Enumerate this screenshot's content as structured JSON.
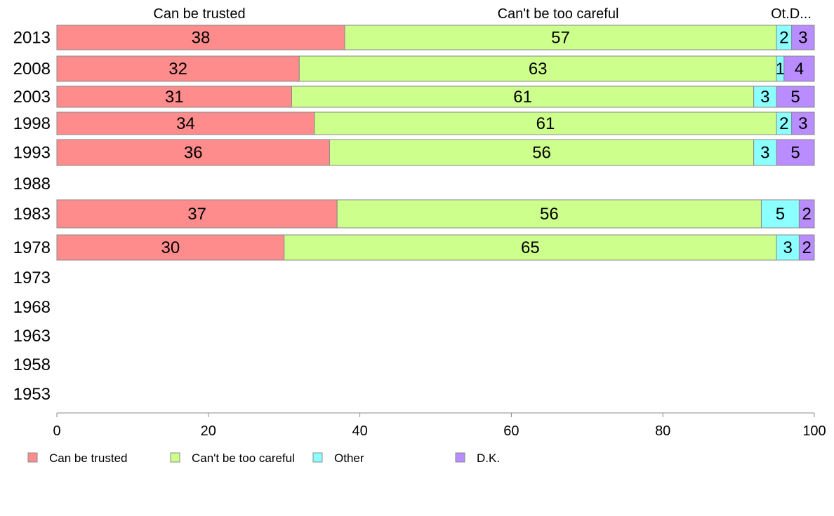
{
  "chart_data": {
    "type": "bar",
    "orientation": "horizontal",
    "stacked": true,
    "categories": [
      "2013",
      "2008",
      "2003",
      "1998",
      "1993",
      "1988",
      "1983",
      "1978",
      "1973",
      "1968",
      "1963",
      "1958",
      "1953"
    ],
    "series": [
      {
        "name": "Can be trusted",
        "color": "#ff8c8c",
        "values": [
          38,
          32,
          31,
          34,
          36,
          null,
          37,
          30,
          null,
          null,
          null,
          null,
          null
        ]
      },
      {
        "name": "Can't be too careful",
        "color": "#cdff8c",
        "values": [
          57,
          63,
          61,
          61,
          56,
          null,
          56,
          65,
          null,
          null,
          null,
          null,
          null
        ]
      },
      {
        "name": "Other",
        "color": "#8cffff",
        "values": [
          2,
          1,
          3,
          2,
          3,
          null,
          5,
          3,
          null,
          null,
          null,
          null,
          null
        ]
      },
      {
        "name": "D.K.",
        "color": "#b98cff",
        "values": [
          3,
          4,
          5,
          3,
          5,
          null,
          2,
          2,
          null,
          null,
          null,
          null,
          null
        ]
      }
    ],
    "top_labels": [
      "Can be trusted",
      "Can't be too careful",
      "Ot.D..."
    ],
    "xlim": [
      0,
      100
    ],
    "xticks": [
      "0",
      "20",
      "40",
      "60",
      "80",
      "100"
    ],
    "xlabel": "",
    "ylabel": "",
    "title": "",
    "grid": false,
    "legend": "bottom"
  }
}
